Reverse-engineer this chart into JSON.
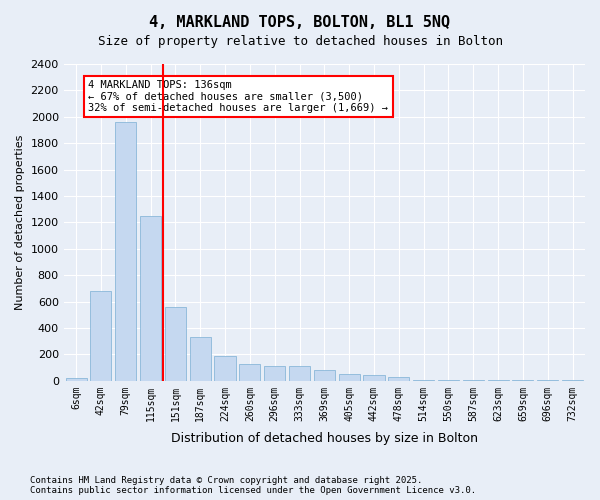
{
  "title": "4, MARKLAND TOPS, BOLTON, BL1 5NQ",
  "subtitle": "Size of property relative to detached houses in Bolton",
  "xlabel": "Distribution of detached houses by size in Bolton",
  "ylabel": "Number of detached properties",
  "footnote": "Contains HM Land Registry data © Crown copyright and database right 2025.\nContains public sector information licensed under the Open Government Licence v3.0.",
  "bar_color": "#c5d8f0",
  "bar_edge_color": "#7bafd4",
  "background_color": "#e8eef7",
  "grid_color": "#ffffff",
  "annotation_text": "4 MARKLAND TOPS: 136sqm\n← 67% of detached houses are smaller (3,500)\n32% of semi-detached houses are larger (1,669) →",
  "property_value": 136,
  "property_bin_index": 3,
  "redline_x": 136,
  "categories": [
    "6sqm",
    "42sqm",
    "79sqm",
    "115sqm",
    "151sqm",
    "187sqm",
    "224sqm",
    "260sqm",
    "296sqm",
    "333sqm",
    "369sqm",
    "405sqm",
    "442sqm",
    "478sqm",
    "514sqm",
    "550sqm",
    "587sqm",
    "623sqm",
    "659sqm",
    "696sqm",
    "732sqm"
  ],
  "values": [
    20,
    680,
    1960,
    1250,
    560,
    330,
    190,
    130,
    110,
    110,
    85,
    55,
    40,
    30,
    5,
    5,
    5,
    5,
    5,
    5,
    5
  ],
  "ylim": [
    0,
    2400
  ],
  "yticks": [
    0,
    200,
    400,
    600,
    800,
    1000,
    1200,
    1400,
    1600,
    1800,
    2000,
    2200,
    2400
  ]
}
